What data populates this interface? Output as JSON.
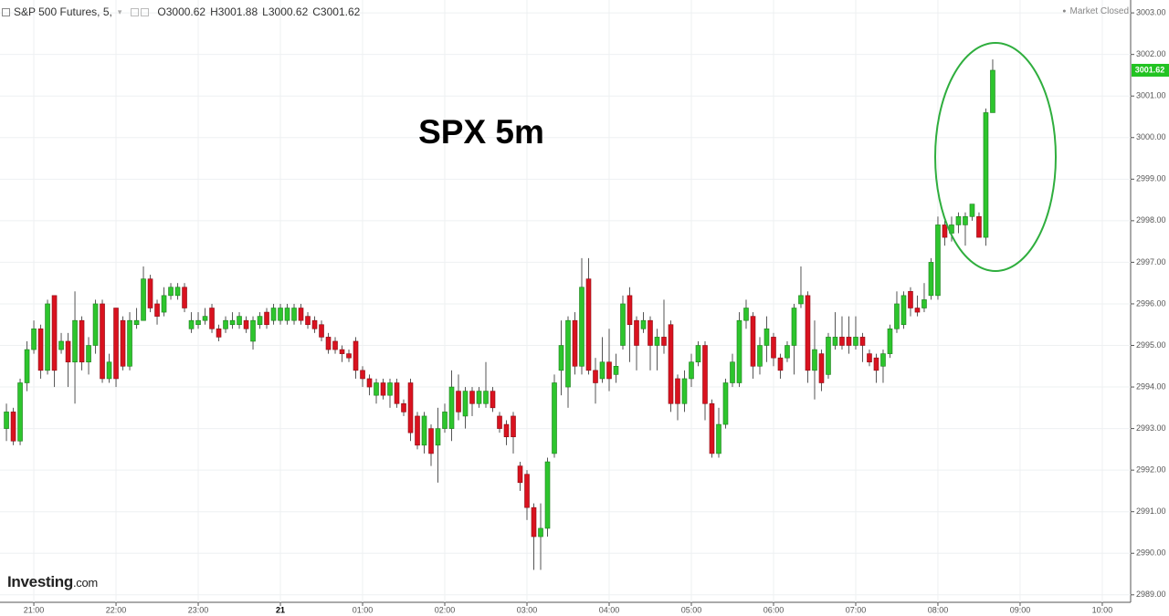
{
  "chart_data": {
    "type": "candlestick",
    "title": "S&P 500 Futures, 5,",
    "ohlc_header": [
      {
        "label": "O",
        "value": 3000.62
      },
      {
        "label": "H",
        "value": 3001.88
      },
      {
        "label": "L",
        "value": 3000.62
      },
      {
        "label": "C",
        "value": 3001.62
      }
    ],
    "status": "Market Closed",
    "annotation": "SPX 5m",
    "logo": {
      "brand": "Investing",
      "suffix": ".com"
    },
    "last_price": 3001.62,
    "up_color": "#2dc52d",
    "down_color": "#d9121f",
    "grid": true,
    "xlim": [
      1235.3,
      2060.7
    ],
    "xticks": [
      {
        "value": 1260,
        "label": "21:00"
      },
      {
        "value": 1320,
        "label": "22:00"
      },
      {
        "value": 1380,
        "label": "23:00"
      },
      {
        "value": 1440,
        "label": "21"
      },
      {
        "value": 1500,
        "label": "01:00"
      },
      {
        "value": 1560,
        "label": "02:00"
      },
      {
        "value": 1620,
        "label": "03:00"
      },
      {
        "value": 1680,
        "label": "04:00"
      },
      {
        "value": 1740,
        "label": "05:00"
      },
      {
        "value": 1800,
        "label": "06:00"
      },
      {
        "value": 1860,
        "label": "07:00"
      },
      {
        "value": 1920,
        "label": "08:00"
      },
      {
        "value": 1980,
        "label": "09:00"
      },
      {
        "value": 2040,
        "label": "10:00"
      }
    ],
    "ylim": [
      2988.82,
      3003.31
    ],
    "yticks": [
      {
        "value": 2989,
        "label": "2989.00"
      },
      {
        "value": 2990,
        "label": "2990.00"
      },
      {
        "value": 2991,
        "label": "2991.00"
      },
      {
        "value": 2992,
        "label": "2992.00"
      },
      {
        "value": 2993,
        "label": "2993.00"
      },
      {
        "value": 2994,
        "label": "2994.00"
      },
      {
        "value": 2995,
        "label": "2995.00"
      },
      {
        "value": 2996,
        "label": "2996.00"
      },
      {
        "value": 2997,
        "label": "2997.00"
      },
      {
        "value": 2998,
        "label": "2998.00"
      },
      {
        "value": 2999,
        "label": "2999.00"
      },
      {
        "value": 3000,
        "label": "3000.00"
      },
      {
        "value": 3001,
        "label": "3001.00"
      },
      {
        "value": 3002,
        "label": "3002.00"
      },
      {
        "value": 3003,
        "label": "3003.00"
      }
    ],
    "x": [
      1240,
      1245,
      1250,
      1255,
      1260,
      1265,
      1270,
      1275,
      1280,
      1285,
      1290,
      1295,
      1300,
      1305,
      1310,
      1315,
      1320,
      1325,
      1330,
      1335,
      1340,
      1345,
      1350,
      1355,
      1360,
      1365,
      1370,
      1375,
      1380,
      1385,
      1390,
      1395,
      1400,
      1405,
      1410,
      1415,
      1420,
      1425,
      1430,
      1435,
      1440,
      1445,
      1450,
      1455,
      1460,
      1465,
      1470,
      1475,
      1480,
      1485,
      1490,
      1495,
      1500,
      1505,
      1510,
      1515,
      1520,
      1525,
      1530,
      1535,
      1540,
      1545,
      1550,
      1555,
      1560,
      1565,
      1570,
      1575,
      1580,
      1585,
      1590,
      1595,
      1600,
      1605,
      1610,
      1615,
      1620,
      1625,
      1630,
      1635,
      1640,
      1645,
      1650,
      1655,
      1660,
      1665,
      1670,
      1675,
      1680,
      1685,
      1690,
      1695,
      1700,
      1705,
      1710,
      1715,
      1720,
      1725,
      1730,
      1735,
      1740,
      1745,
      1750,
      1755,
      1760,
      1765,
      1770,
      1775,
      1780,
      1785,
      1790,
      1795,
      1800,
      1805,
      1810,
      1815,
      1820,
      1825,
      1830,
      1835,
      1840,
      1845,
      1850,
      1855,
      1860,
      1865,
      1870,
      1875,
      1880,
      1885,
      1890,
      1895,
      1900,
      1905,
      1910,
      1915,
      1920,
      1925,
      1930,
      1935,
      1940,
      1945,
      1950,
      1955,
      1960
    ],
    "open": [
      2993.0,
      2993.4,
      2992.7,
      2994.1,
      2994.9,
      2995.4,
      2994.4,
      2996.2,
      2994.9,
      2995.1,
      2994.6,
      2995.6,
      2994.6,
      2995.0,
      2996.0,
      2994.2,
      2995.9,
      2995.6,
      2994.5,
      2995.5,
      2995.6,
      2996.6,
      2996.0,
      2995.8,
      2996.2,
      2996.2,
      2996.4,
      2995.4,
      2995.5,
      2995.6,
      2995.9,
      2995.4,
      2995.4,
      2995.5,
      2995.5,
      2995.6,
      2995.1,
      2995.5,
      2995.8,
      2995.6,
      2995.6,
      2995.6,
      2995.6,
      2995.9,
      2995.7,
      2995.6,
      2995.5,
      2995.2,
      2995.1,
      2994.9,
      2994.8,
      2995.1,
      2994.4,
      2994.2,
      2993.8,
      2994.1,
      2993.8,
      2994.1,
      2993.6,
      2994.1,
      2993.3,
      2992.6,
      2993.0,
      2992.6,
      2993.0,
      2993.0,
      2993.9,
      2993.3,
      2993.9,
      2993.6,
      2993.6,
      2993.9,
      2993.3,
      2993.1,
      2993.3,
      2992.1,
      2991.9,
      2991.1,
      2990.4,
      2990.6,
      2992.4,
      2994.4,
      2994.0,
      2995.6,
      2994.5,
      2996.6,
      2994.4,
      2994.2,
      2994.6,
      2994.3,
      2995.0,
      2996.2,
      2995.6,
      2995.4,
      2995.6,
      2995.0,
      2995.2,
      2995.5,
      2994.2,
      2993.6,
      2994.2,
      2994.6,
      2995.0,
      2993.6,
      2992.4,
      2993.1,
      2994.1,
      2994.1,
      2995.6,
      2995.7,
      2994.5,
      2995.0,
      2995.2,
      2994.7,
      2994.7,
      2995.0,
      2996.0,
      2996.2,
      2994.4,
      2994.8,
      2994.3,
      2995.0,
      2995.2,
      2995.2,
      2995.0,
      2995.2,
      2994.8,
      2994.7,
      2994.5,
      2994.8,
      2995.4,
      2995.5,
      2996.3,
      2995.9,
      2995.9,
      2996.2,
      2996.2,
      2997.9,
      2997.7,
      2997.9,
      2997.9,
      2998.1,
      2998.1,
      2997.6,
      3000.6
    ],
    "high": [
      2993.6,
      2993.5,
      2994.2,
      2995.1,
      2995.6,
      2995.5,
      2996.1,
      2996.2,
      2995.3,
      2995.3,
      2996.3,
      2995.7,
      2995.2,
      2996.1,
      2996.1,
      2994.8,
      2995.9,
      2995.7,
      2995.8,
      2995.9,
      2996.9,
      2996.7,
      2996.1,
      2996.4,
      2996.5,
      2996.5,
      2996.5,
      2995.8,
      2995.8,
      2995.9,
      2996.0,
      2995.5,
      2995.7,
      2995.8,
      2995.8,
      2995.7,
      2995.7,
      2995.8,
      2995.9,
      2996.0,
      2996.0,
      2996.0,
      2996.0,
      2996.0,
      2995.8,
      2995.7,
      2995.6,
      2995.3,
      2995.2,
      2995.0,
      2994.9,
      2995.2,
      2994.5,
      2994.3,
      2994.2,
      2994.2,
      2994.2,
      2994.2,
      2993.7,
      2994.2,
      2993.4,
      2993.4,
      2993.1,
      2993.5,
      2993.6,
      2994.4,
      2994.3,
      2994.0,
      2994.0,
      2994.0,
      2994.6,
      2994.0,
      2993.4,
      2993.2,
      2993.4,
      2992.2,
      2992.0,
      2991.2,
      2991.2,
      2992.3,
      2994.3,
      2995.6,
      2995.7,
      2995.8,
      2997.1,
      2997.1,
      2994.7,
      2995.2,
      2995.4,
      2994.8,
      2996.2,
      2996.4,
      2995.7,
      2995.8,
      2995.7,
      2995.4,
      2996.1,
      2995.6,
      2994.3,
      2994.4,
      2994.8,
      2995.1,
      2995.1,
      2993.7,
      2993.5,
      2994.2,
      2994.8,
      2995.8,
      2996.1,
      2995.8,
      2995.2,
      2995.7,
      2995.3,
      2994.8,
      2995.1,
      2996.0,
      2996.9,
      2996.3,
      2995.6,
      2994.9,
      2995.3,
      2995.8,
      2995.7,
      2995.7,
      2995.7,
      2995.3,
      2994.9,
      2994.8,
      2994.9,
      2995.5,
      2996.3,
      2996.3,
      2996.4,
      2996.2,
      2996.5,
      2997.1,
      2998.1,
      2998.0,
      2998.1,
      2998.2,
      2998.2,
      2998.4,
      2998.2,
      3000.7,
      3001.88
    ],
    "low": [
      2992.7,
      2992.6,
      2992.6,
      2993.9,
      2994.8,
      2994.2,
      2994.3,
      2994.0,
      2994.8,
      2994.0,
      2993.6,
      2994.4,
      2994.3,
      2994.8,
      2994.1,
      2994.1,
      2994.0,
      2994.4,
      2994.4,
      2995.4,
      2995.6,
      2995.8,
      2995.5,
      2995.7,
      2996.1,
      2996.1,
      2995.8,
      2995.3,
      2995.4,
      2995.5,
      2995.3,
      2995.1,
      2995.3,
      2995.4,
      2995.4,
      2995.3,
      2994.9,
      2995.4,
      2995.4,
      2995.5,
      2995.5,
      2995.5,
      2995.5,
      2995.5,
      2995.4,
      2995.3,
      2995.1,
      2994.8,
      2994.8,
      2994.6,
      2994.6,
      2994.2,
      2994.0,
      2993.8,
      2993.6,
      2993.7,
      2993.5,
      2993.5,
      2993.3,
      2992.7,
      2992.5,
      2992.4,
      2992.1,
      2991.7,
      2992.9,
      2992.7,
      2993.2,
      2993.0,
      2993.3,
      2993.5,
      2993.5,
      2993.4,
      2992.9,
      2992.6,
      2992.4,
      2991.5,
      2990.8,
      2989.6,
      2989.6,
      2990.4,
      2992.3,
      2993.8,
      2993.5,
      2994.3,
      2994.3,
      2994.3,
      2993.6,
      2994.1,
      2993.9,
      2994.1,
      2994.9,
      2994.6,
      2994.4,
      2995.3,
      2994.4,
      2994.4,
      2994.8,
      2993.4,
      2993.2,
      2993.4,
      2994.0,
      2994.5,
      2993.2,
      2992.3,
      2992.3,
      2993.0,
      2994.0,
      2994.0,
      2995.4,
      2994.2,
      2994.3,
      2994.6,
      2994.5,
      2994.2,
      2994.6,
      2994.3,
      2995.9,
      2994.1,
      2993.7,
      2993.9,
      2994.2,
      2994.9,
      2994.9,
      2994.8,
      2994.9,
      2994.6,
      2994.5,
      2994.1,
      2994.1,
      2994.7,
      2995.3,
      2995.4,
      2995.7,
      2995.7,
      2995.8,
      2996.1,
      2996.1,
      2997.4,
      2997.5,
      2997.7,
      2997.4,
      2998.0,
      2997.6,
      2997.4,
      3000.62
    ],
    "close": [
      2993.4,
      2992.7,
      2994.1,
      2994.9,
      2995.4,
      2994.4,
      2996.0,
      2994.4,
      2995.1,
      2994.6,
      2995.6,
      2994.6,
      2995.0,
      2996.0,
      2994.2,
      2994.6,
      2994.2,
      2994.5,
      2995.6,
      2995.6,
      2996.6,
      2995.9,
      2995.7,
      2996.2,
      2996.4,
      2996.4,
      2995.9,
      2995.6,
      2995.6,
      2995.7,
      2995.4,
      2995.2,
      2995.6,
      2995.6,
      2995.7,
      2995.4,
      2995.6,
      2995.7,
      2995.5,
      2995.9,
      2995.9,
      2995.9,
      2995.9,
      2995.6,
      2995.5,
      2995.4,
      2995.2,
      2994.9,
      2994.9,
      2994.8,
      2994.7,
      2994.4,
      2994.2,
      2994.0,
      2994.1,
      2993.8,
      2994.1,
      2993.6,
      2993.4,
      2992.9,
      2992.6,
      2993.3,
      2992.4,
      2993.0,
      2993.4,
      2994.0,
      2993.4,
      2993.9,
      2993.6,
      2993.9,
      2993.9,
      2993.5,
      2993.0,
      2992.8,
      2992.8,
      2991.7,
      2991.1,
      2990.4,
      2990.6,
      2992.2,
      2994.1,
      2995.0,
      2995.6,
      2994.5,
      2996.4,
      2994.4,
      2994.1,
      2994.6,
      2994.2,
      2994.5,
      2996.0,
      2995.5,
      2995.0,
      2995.6,
      2995.0,
      2995.2,
      2995.0,
      2993.6,
      2993.6,
      2994.2,
      2994.6,
      2995.0,
      2993.6,
      2992.4,
      2993.1,
      2994.1,
      2994.6,
      2995.6,
      2995.9,
      2994.5,
      2995.0,
      2995.4,
      2994.7,
      2994.4,
      2995.0,
      2995.9,
      2996.2,
      2994.4,
      2994.9,
      2994.1,
      2995.2,
      2995.2,
      2995.0,
      2995.0,
      2995.2,
      2995.0,
      2994.6,
      2994.4,
      2994.8,
      2995.4,
      2996.0,
      2996.2,
      2995.9,
      2995.8,
      2996.1,
      2997.0,
      2997.9,
      2997.6,
      2997.9,
      2998.1,
      2998.1,
      2998.4,
      2997.6,
      3000.6,
      3001.62
    ]
  }
}
